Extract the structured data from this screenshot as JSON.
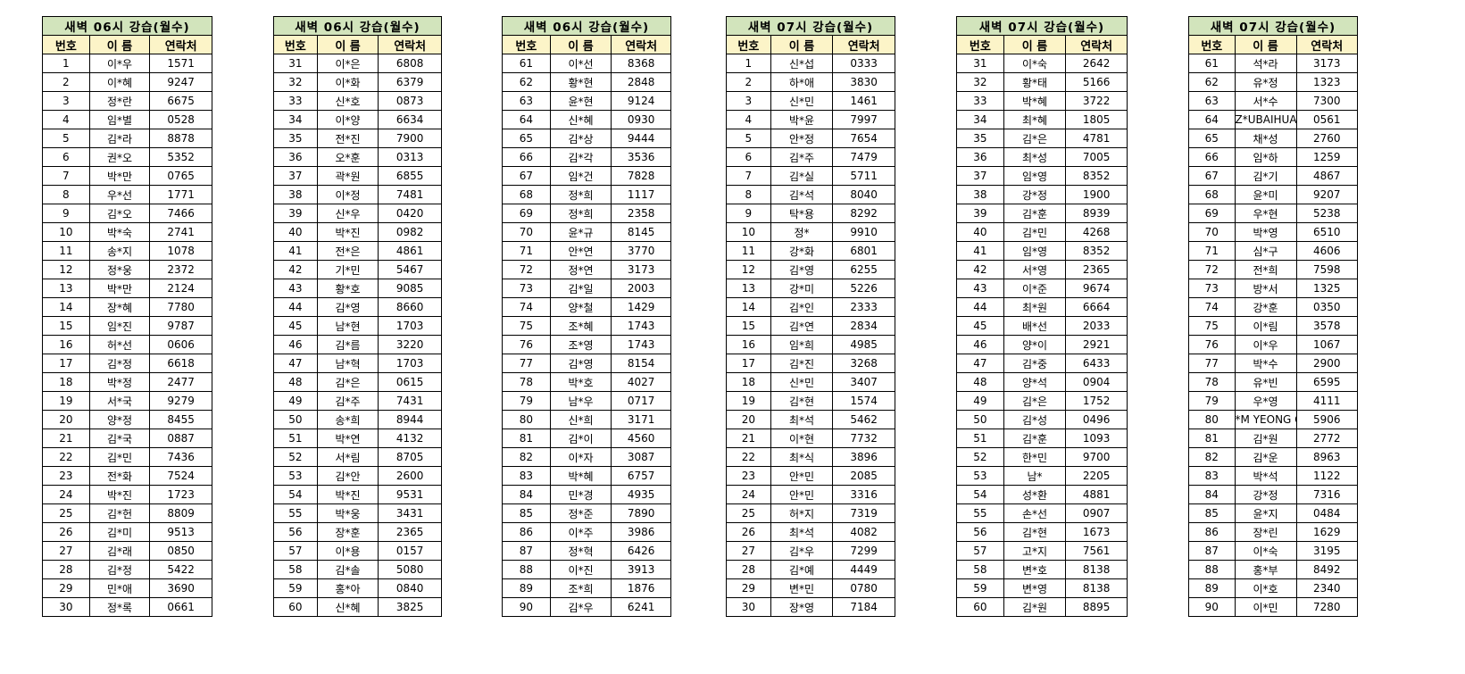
{
  "headers": {
    "no": "번호",
    "name": "이 름",
    "phone": "연락처"
  },
  "tables": [
    {
      "title": "새벽 06시 강습(월수)",
      "rows": [
        [
          "1",
          "이*우",
          "1571"
        ],
        [
          "2",
          "이*혜",
          "9247"
        ],
        [
          "3",
          "정*란",
          "6675"
        ],
        [
          "4",
          "임*별",
          "0528"
        ],
        [
          "5",
          "김*라",
          "8878"
        ],
        [
          "6",
          "권*오",
          "5352"
        ],
        [
          "7",
          "박*만",
          "0765"
        ],
        [
          "8",
          "우*선",
          "1771"
        ],
        [
          "9",
          "김*오",
          "7466"
        ],
        [
          "10",
          "박*숙",
          "2741"
        ],
        [
          "11",
          "송*지",
          "1078"
        ],
        [
          "12",
          "정*웅",
          "2372"
        ],
        [
          "13",
          "박*만",
          "2124"
        ],
        [
          "14",
          "장*혜",
          "7780"
        ],
        [
          "15",
          "임*진",
          "9787"
        ],
        [
          "16",
          "허*선",
          "0606"
        ],
        [
          "17",
          "김*정",
          "6618"
        ],
        [
          "18",
          "박*정",
          "2477"
        ],
        [
          "19",
          "서*국",
          "9279"
        ],
        [
          "20",
          "양*정",
          "8455"
        ],
        [
          "21",
          "김*국",
          "0887"
        ],
        [
          "22",
          "김*민",
          "7436"
        ],
        [
          "23",
          "전*화",
          "7524"
        ],
        [
          "24",
          "박*진",
          "1723"
        ],
        [
          "25",
          "김*헌",
          "8809"
        ],
        [
          "26",
          "김*미",
          "9513"
        ],
        [
          "27",
          "김*래",
          "0850"
        ],
        [
          "28",
          "김*정",
          "5422"
        ],
        [
          "29",
          "민*애",
          "3690"
        ],
        [
          "30",
          "정*록",
          "0661"
        ]
      ]
    },
    {
      "title": "새벽 06시 강습(월수)",
      "rows": [
        [
          "31",
          "이*은",
          "6808"
        ],
        [
          "32",
          "이*화",
          "6379"
        ],
        [
          "33",
          "신*호",
          "0873"
        ],
        [
          "34",
          "이*양",
          "6634"
        ],
        [
          "35",
          "전*진",
          "7900"
        ],
        [
          "36",
          "오*훈",
          "0313"
        ],
        [
          "37",
          "곽*원",
          "6855"
        ],
        [
          "38",
          "이*정",
          "7481"
        ],
        [
          "39",
          "신*우",
          "0420"
        ],
        [
          "40",
          "박*진",
          "0982"
        ],
        [
          "41",
          "전*은",
          "4861"
        ],
        [
          "42",
          "기*민",
          "5467"
        ],
        [
          "43",
          "황*호",
          "9085"
        ],
        [
          "44",
          "김*영",
          "8660"
        ],
        [
          "45",
          "남*현",
          "1703"
        ],
        [
          "46",
          "김*름",
          "3220"
        ],
        [
          "47",
          "남*혁",
          "1703"
        ],
        [
          "48",
          "김*은",
          "0615"
        ],
        [
          "49",
          "김*주",
          "7431"
        ],
        [
          "50",
          "송*희",
          "8944"
        ],
        [
          "51",
          "박*연",
          "4132"
        ],
        [
          "52",
          "서*림",
          "8705"
        ],
        [
          "53",
          "김*안",
          "2600"
        ],
        [
          "54",
          "박*진",
          "9531"
        ],
        [
          "55",
          "박*웅",
          "3431"
        ],
        [
          "56",
          "장*훈",
          "2365"
        ],
        [
          "57",
          "이*용",
          "0157"
        ],
        [
          "58",
          "김*솔",
          "5080"
        ],
        [
          "59",
          "홍*아",
          "0840"
        ],
        [
          "60",
          "신*혜",
          "3825"
        ]
      ]
    },
    {
      "title": "새벽 06시 강습(월수)",
      "rows": [
        [
          "61",
          "이*선",
          "8368"
        ],
        [
          "62",
          "황*현",
          "2848"
        ],
        [
          "63",
          "윤*현",
          "9124"
        ],
        [
          "64",
          "신*혜",
          "0930"
        ],
        [
          "65",
          "김*상",
          "9444"
        ],
        [
          "66",
          "김*각",
          "3536"
        ],
        [
          "67",
          "임*건",
          "7828"
        ],
        [
          "68",
          "정*희",
          "1117"
        ],
        [
          "69",
          "정*희",
          "2358"
        ],
        [
          "70",
          "윤*규",
          "8145"
        ],
        [
          "71",
          "안*연",
          "3770"
        ],
        [
          "72",
          "정*연",
          "3173"
        ],
        [
          "73",
          "김*일",
          "2003"
        ],
        [
          "74",
          "양*철",
          "1429"
        ],
        [
          "75",
          "조*혜",
          "1743"
        ],
        [
          "76",
          "조*영",
          "1743"
        ],
        [
          "77",
          "김*영",
          "8154"
        ],
        [
          "78",
          "박*호",
          "4027"
        ],
        [
          "79",
          "남*우",
          "0717"
        ],
        [
          "80",
          "신*희",
          "3171"
        ],
        [
          "81",
          "김*이",
          "4560"
        ],
        [
          "82",
          "이*자",
          "3087"
        ],
        [
          "83",
          "박*혜",
          "6757"
        ],
        [
          "84",
          "민*경",
          "4935"
        ],
        [
          "85",
          "정*준",
          "7890"
        ],
        [
          "86",
          "이*주",
          "3986"
        ],
        [
          "87",
          "정*혁",
          "6426"
        ],
        [
          "88",
          "이*진",
          "3913"
        ],
        [
          "89",
          "조*희",
          "1876"
        ],
        [
          "90",
          "김*우",
          "6241"
        ]
      ]
    },
    {
      "title": "새벽 07시 강습(월수)",
      "rows": [
        [
          "1",
          "신*섭",
          "0333"
        ],
        [
          "2",
          "하*애",
          "3830"
        ],
        [
          "3",
          "신*민",
          "1461"
        ],
        [
          "4",
          "박*윤",
          "7997"
        ],
        [
          "5",
          "안*정",
          "7654"
        ],
        [
          "6",
          "김*주",
          "7479"
        ],
        [
          "7",
          "김*실",
          "5711"
        ],
        [
          "8",
          "김*석",
          "8040"
        ],
        [
          "9",
          "탁*용",
          "8292"
        ],
        [
          "10",
          "정*",
          "9910"
        ],
        [
          "11",
          "강*화",
          "6801"
        ],
        [
          "12",
          "김*영",
          "6255"
        ],
        [
          "13",
          "강*미",
          "5226"
        ],
        [
          "14",
          "김*인",
          "2333"
        ],
        [
          "15",
          "김*연",
          "2834"
        ],
        [
          "16",
          "임*희",
          "4985"
        ],
        [
          "17",
          "김*진",
          "3268"
        ],
        [
          "18",
          "신*민",
          "3407"
        ],
        [
          "19",
          "김*현",
          "1574"
        ],
        [
          "20",
          "최*석",
          "5462"
        ],
        [
          "21",
          "이*현",
          "7732"
        ],
        [
          "22",
          "최*식",
          "3896"
        ],
        [
          "23",
          "안*민",
          "2085"
        ],
        [
          "24",
          "안*민",
          "3316"
        ],
        [
          "25",
          "허*지",
          "7319"
        ],
        [
          "26",
          "최*석",
          "4082"
        ],
        [
          "27",
          "김*우",
          "7299"
        ],
        [
          "28",
          "김*예",
          "4449"
        ],
        [
          "29",
          "변*민",
          "0780"
        ],
        [
          "30",
          "장*영",
          "7184"
        ]
      ]
    },
    {
      "title": "새벽 07시 강습(월수)",
      "rows": [
        [
          "31",
          "이*숙",
          "2642"
        ],
        [
          "32",
          "황*태",
          "5166"
        ],
        [
          "33",
          "박*혜",
          "3722"
        ],
        [
          "34",
          "최*혜",
          "1805"
        ],
        [
          "35",
          "김*은",
          "4781"
        ],
        [
          "36",
          "최*성",
          "7005"
        ],
        [
          "37",
          "임*영",
          "8352"
        ],
        [
          "38",
          "강*정",
          "1900"
        ],
        [
          "39",
          "김*훈",
          "8939"
        ],
        [
          "40",
          "김*민",
          "4268"
        ],
        [
          "41",
          "임*영",
          "8352"
        ],
        [
          "42",
          "서*영",
          "2365"
        ],
        [
          "43",
          "이*준",
          "9674"
        ],
        [
          "44",
          "최*원",
          "6664"
        ],
        [
          "45",
          "배*선",
          "2033"
        ],
        [
          "46",
          "양*이",
          "2921"
        ],
        [
          "47",
          "김*중",
          "6433"
        ],
        [
          "48",
          "양*석",
          "0904"
        ],
        [
          "49",
          "김*은",
          "1752"
        ],
        [
          "50",
          "김*성",
          "0496"
        ],
        [
          "51",
          "김*훈",
          "1093"
        ],
        [
          "52",
          "한*민",
          "9700"
        ],
        [
          "53",
          "남*",
          "2205"
        ],
        [
          "54",
          "성*환",
          "4881"
        ],
        [
          "55",
          "손*선",
          "0907"
        ],
        [
          "56",
          "김*현",
          "1673"
        ],
        [
          "57",
          "고*지",
          "7561"
        ],
        [
          "58",
          "변*호",
          "8138"
        ],
        [
          "59",
          "변*영",
          "8138"
        ],
        [
          "60",
          "김*원",
          "8895"
        ]
      ]
    },
    {
      "title": "새벽 07시 강습(월수)",
      "rows": [
        [
          "61",
          "석*라",
          "3173"
        ],
        [
          "62",
          "유*정",
          "1323"
        ],
        [
          "63",
          "서*수",
          "7300"
        ],
        [
          "64",
          "Z*UBAIHUA",
          "0561"
        ],
        [
          "65",
          "채*성",
          "2760"
        ],
        [
          "66",
          "임*하",
          "1259"
        ],
        [
          "67",
          "김*기",
          "4867"
        ],
        [
          "68",
          "윤*미",
          "9207"
        ],
        [
          "69",
          "우*현",
          "5238"
        ],
        [
          "70",
          "박*영",
          "6510"
        ],
        [
          "71",
          "심*구",
          "4606"
        ],
        [
          "72",
          "전*희",
          "7598"
        ],
        [
          "73",
          "방*서",
          "1325"
        ],
        [
          "74",
          "강*훈",
          "0350"
        ],
        [
          "75",
          "이*림",
          "3578"
        ],
        [
          "76",
          "이*우",
          "1067"
        ],
        [
          "77",
          "박*수",
          "2900"
        ],
        [
          "78",
          "유*빈",
          "6595"
        ],
        [
          "79",
          "우*영",
          "4111"
        ],
        [
          "80",
          "*M YEONG GI",
          "5906"
        ],
        [
          "81",
          "김*원",
          "2772"
        ],
        [
          "82",
          "김*운",
          "8963"
        ],
        [
          "83",
          "박*석",
          "1122"
        ],
        [
          "84",
          "강*정",
          "7316"
        ],
        [
          "85",
          "윤*지",
          "0484"
        ],
        [
          "86",
          "장*린",
          "1629"
        ],
        [
          "87",
          "이*숙",
          "3195"
        ],
        [
          "88",
          "홍*부",
          "8492"
        ],
        [
          "89",
          "이*호",
          "2340"
        ],
        [
          "90",
          "이*민",
          "7280"
        ]
      ]
    }
  ]
}
